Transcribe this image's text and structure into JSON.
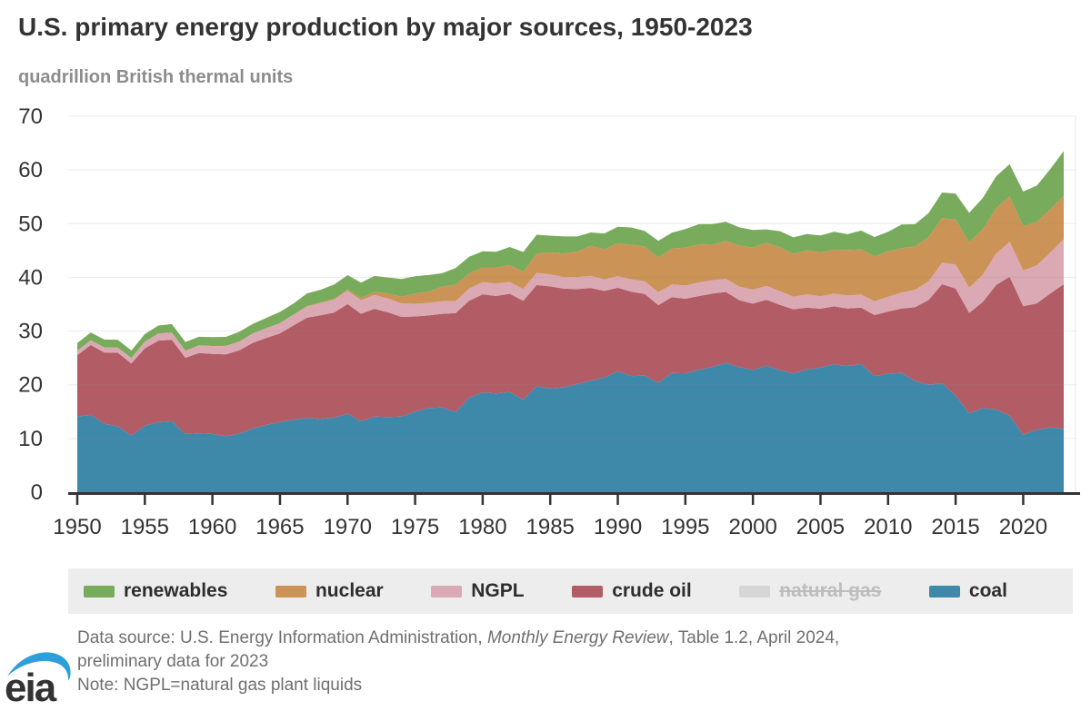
{
  "title": "U.S. primary energy production by major sources, 1950-2023",
  "subtitle": "quadrillion British thermal units",
  "legend": {
    "items": [
      {
        "label": "renewables",
        "color": "#79ab5c",
        "disabled": false
      },
      {
        "label": "nuclear",
        "color": "#cb9355",
        "disabled": false
      },
      {
        "label": "NGPL",
        "color": "#daa9b3",
        "disabled": false
      },
      {
        "label": "crude oil",
        "color": "#b25c66",
        "disabled": false
      },
      {
        "label": "natural gas",
        "color": "#d6d6d6",
        "disabled": true
      },
      {
        "label": "coal",
        "color": "#3e88aa",
        "disabled": false
      }
    ]
  },
  "footer": {
    "source_prefix": "Data source: U.S. Energy Information Administration, ",
    "source_italic": "Monthly Energy Review",
    "source_suffix": ", Table 1.2, April 2024,",
    "source_line2": "preliminary data for 2023",
    "note": "Note: NGPL=natural gas plant liquids",
    "logo_text": "eia",
    "logo_blue": "#2d9fd9"
  },
  "axis": {
    "color": "#333333",
    "grid_color": "#8c8c8c",
    "grid_opacity": 0.16
  },
  "chart_data": {
    "type": "area",
    "stacked": true,
    "title": "U.S. primary energy production by major sources, 1950-2023",
    "ylabel": "quadrillion British thermal units",
    "xlabel": "",
    "year_start": 1950,
    "year_end": 2023,
    "ylim": [
      0,
      70
    ],
    "y_ticks": [
      0,
      10,
      20,
      30,
      40,
      50,
      60,
      70
    ],
    "x_tick_years": [
      1950,
      1955,
      1960,
      1965,
      1970,
      1975,
      1980,
      1985,
      1990,
      1995,
      2000,
      2005,
      2010,
      2015,
      2020
    ],
    "grid": true,
    "legend_position": "bottom",
    "excluded_series": [
      "natural gas"
    ],
    "series": [
      {
        "name": "coal",
        "color": "#3e88aa",
        "values": [
          14.06,
          14.42,
          12.73,
          12.28,
          10.54,
          12.37,
          13.04,
          13.21,
          10.82,
          10.98,
          10.82,
          10.45,
          10.9,
          11.85,
          12.52,
          13.06,
          13.47,
          13.83,
          13.61,
          13.86,
          14.61,
          13.19,
          14.09,
          13.99,
          14.07,
          14.99,
          15.65,
          15.76,
          14.91,
          17.54,
          18.6,
          18.38,
          18.64,
          17.25,
          19.72,
          19.33,
          19.51,
          20.14,
          20.74,
          21.35,
          22.49,
          21.63,
          21.69,
          20.34,
          22.2,
          22.13,
          22.79,
          23.31,
          24.05,
          23.3,
          22.74,
          23.55,
          22.73,
          22.09,
          22.85,
          23.19,
          23.79,
          23.49,
          23.85,
          21.62,
          22.04,
          22.22,
          20.68,
          20.0,
          20.29,
          17.95,
          14.67,
          15.65,
          15.37,
          14.26,
          10.7,
          11.6,
          12.04,
          11.77
        ]
      },
      {
        "name": "crude oil",
        "color": "#b25c66",
        "values": [
          11.45,
          12.98,
          13.28,
          13.67,
          13.43,
          14.41,
          15.18,
          15.18,
          14.2,
          14.93,
          14.93,
          15.22,
          15.52,
          15.97,
          16.21,
          16.52,
          17.57,
          18.65,
          19.31,
          19.56,
          20.4,
          20.03,
          20.04,
          19.49,
          18.57,
          17.73,
          17.26,
          17.45,
          18.43,
          18.1,
          18.25,
          18.15,
          18.31,
          18.39,
          18.85,
          18.99,
          18.38,
          17.67,
          17.28,
          16.12,
          15.57,
          15.7,
          15.22,
          14.49,
          14.1,
          13.89,
          13.72,
          13.66,
          13.24,
          12.45,
          12.36,
          12.28,
          12.16,
          11.96,
          11.5,
          10.96,
          10.8,
          10.72,
          10.52,
          11.35,
          11.59,
          11.99,
          13.76,
          15.78,
          18.43,
          19.98,
          18.73,
          19.72,
          23.23,
          25.87,
          23.95,
          23.51,
          24.95,
          26.94
        ]
      },
      {
        "name": "NGPL",
        "color": "#daa9b3",
        "values": [
          0.82,
          0.89,
          0.95,
          0.99,
          1.01,
          1.24,
          1.32,
          1.34,
          1.32,
          1.43,
          1.46,
          1.55,
          1.62,
          1.72,
          1.81,
          1.88,
          1.96,
          2.1,
          2.28,
          2.43,
          2.51,
          2.54,
          2.6,
          2.57,
          2.47,
          2.37,
          2.33,
          2.33,
          2.25,
          2.29,
          2.25,
          2.31,
          2.19,
          2.18,
          2.27,
          2.24,
          2.15,
          2.22,
          2.26,
          2.16,
          2.17,
          2.31,
          2.36,
          2.41,
          2.39,
          2.44,
          2.53,
          2.5,
          2.42,
          2.53,
          2.61,
          2.55,
          2.56,
          2.35,
          2.47,
          2.33,
          2.36,
          2.41,
          2.42,
          2.57,
          2.78,
          2.93,
          3.25,
          3.47,
          4.0,
          4.47,
          4.7,
          5.09,
          5.84,
          6.49,
          6.62,
          7.12,
          7.62,
          8.4
        ]
      },
      {
        "name": "nuclear",
        "color": "#cb9355",
        "values": [
          0,
          0,
          0,
          0,
          0,
          0,
          0,
          0,
          0,
          0,
          0.01,
          0.02,
          0.03,
          0.03,
          0.03,
          0.04,
          0.06,
          0.09,
          0.14,
          0.15,
          0.24,
          0.41,
          0.58,
          0.91,
          1.27,
          1.9,
          2.11,
          2.7,
          3.02,
          2.78,
          2.74,
          3.01,
          3.13,
          3.2,
          3.55,
          4.08,
          4.38,
          4.75,
          5.59,
          5.6,
          6.1,
          6.42,
          6.48,
          6.41,
          6.69,
          7.08,
          7.09,
          6.6,
          7.07,
          7.61,
          7.86,
          8.03,
          8.15,
          7.96,
          8.22,
          8.16,
          8.21,
          8.46,
          8.43,
          8.36,
          8.43,
          8.27,
          8.06,
          8.24,
          8.33,
          8.34,
          8.42,
          8.42,
          8.44,
          8.45,
          8.25,
          8.13,
          8.06,
          8.1
        ]
      },
      {
        "name": "renewables",
        "color": "#79ab5c",
        "values": [
          1.44,
          1.45,
          1.47,
          1.44,
          1.39,
          1.41,
          1.49,
          1.56,
          1.63,
          1.59,
          1.66,
          1.68,
          1.82,
          1.77,
          1.89,
          2.06,
          2.07,
          2.34,
          2.35,
          2.66,
          2.65,
          2.86,
          2.94,
          3.01,
          3.31,
          3.22,
          3.07,
          2.52,
          3.14,
          3.14,
          3.01,
          2.9,
          3.39,
          3.71,
          3.55,
          3.12,
          3.2,
          2.83,
          2.49,
          2.94,
          3.1,
          3.22,
          2.88,
          3.15,
          2.95,
          3.44,
          3.76,
          3.84,
          3.55,
          3.42,
          3.26,
          2.53,
          3.0,
          3.08,
          3.02,
          3.16,
          3.34,
          2.96,
          3.5,
          3.61,
          3.64,
          4.41,
          4.15,
          4.49,
          4.75,
          4.86,
          5.49,
          5.86,
          5.94,
          6.0,
          6.47,
          6.7,
          7.45,
          8.3
        ]
      }
    ]
  }
}
